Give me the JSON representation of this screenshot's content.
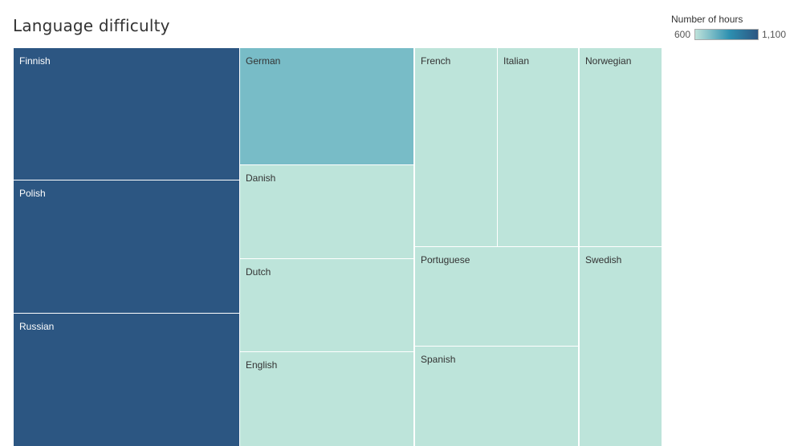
{
  "chart_data": {
    "type": "treemap",
    "title": "Language difficulty",
    "legend": {
      "title": "Number of hours",
      "min_label": "600",
      "max_label": "1,100",
      "min": 600,
      "max": 1100,
      "color_low": "#bfe3da",
      "color_mid": "#2d8fb0",
      "color_high": "#2c5682",
      "placement": "top-right"
    },
    "tiles": [
      {
        "label": "Finnish",
        "value": 1100,
        "color": "#2c5682"
      },
      {
        "label": "Polish",
        "value": 1100,
        "color": "#2c5682"
      },
      {
        "label": "Russian",
        "value": 1100,
        "color": "#2c5682"
      },
      {
        "label": "German",
        "value": 750,
        "color": "#78bcc7"
      },
      {
        "label": "Danish",
        "value": 600,
        "color": "#bde4da"
      },
      {
        "label": "Dutch",
        "value": 600,
        "color": "#bde4da"
      },
      {
        "label": "English",
        "value": 600,
        "color": "#bde4da"
      },
      {
        "label": "French",
        "value": 600,
        "color": "#bde4da"
      },
      {
        "label": "Italian",
        "value": 600,
        "color": "#bde4da"
      },
      {
        "label": "Norwegian",
        "value": 600,
        "color": "#bde4da"
      },
      {
        "label": "Portuguese",
        "value": 600,
        "color": "#bde4da"
      },
      {
        "label": "Spanish",
        "value": 600,
        "color": "#bde4da"
      },
      {
        "label": "Swedish",
        "value": 600,
        "color": "#bde4da"
      }
    ]
  }
}
